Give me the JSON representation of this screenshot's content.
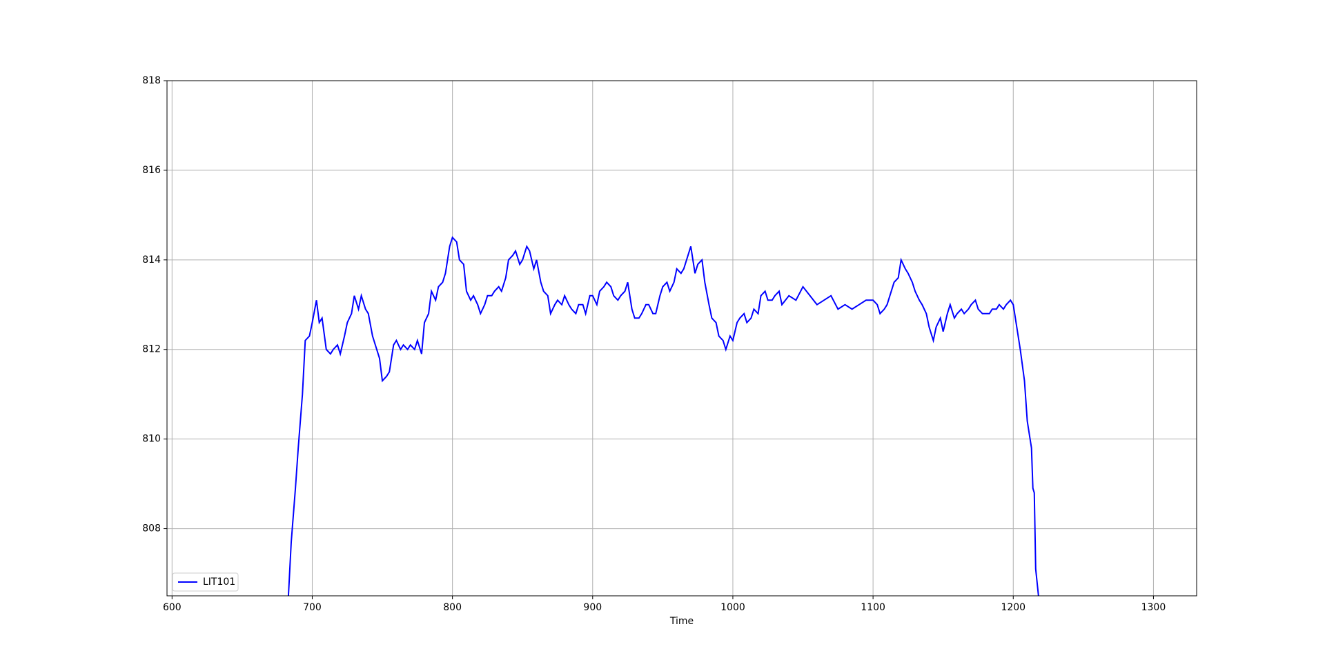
{
  "chart_data": {
    "type": "line",
    "xlabel": "Time",
    "x": [
      683,
      685,
      688,
      690,
      693,
      695,
      698,
      700,
      703,
      705,
      707,
      710,
      713,
      715,
      718,
      720,
      723,
      725,
      728,
      730,
      733,
      735,
      738,
      740,
      743,
      745,
      748,
      750,
      753,
      755,
      758,
      760,
      763,
      765,
      768,
      770,
      773,
      775,
      778,
      780,
      783,
      785,
      788,
      790,
      793,
      795,
      798,
      800,
      803,
      805,
      808,
      810,
      813,
      815,
      818,
      820,
      823,
      825,
      828,
      830,
      833,
      835,
      838,
      840,
      843,
      845,
      848,
      850,
      853,
      855,
      858,
      860,
      863,
      865,
      868,
      870,
      873,
      875,
      878,
      880,
      883,
      885,
      888,
      890,
      893,
      895,
      898,
      900,
      903,
      905,
      908,
      910,
      913,
      915,
      918,
      920,
      923,
      925,
      928,
      930,
      933,
      935,
      938,
      940,
      943,
      945,
      948,
      950,
      953,
      955,
      958,
      960,
      963,
      965,
      968,
      970,
      973,
      975,
      978,
      980,
      983,
      985,
      988,
      990,
      993,
      995,
      998,
      1000,
      1003,
      1005,
      1008,
      1010,
      1013,
      1015,
      1018,
      1020,
      1023,
      1025,
      1028,
      1030,
      1033,
      1035,
      1040,
      1045,
      1050,
      1055,
      1060,
      1065,
      1070,
      1075,
      1080,
      1085,
      1090,
      1095,
      1100,
      1103,
      1105,
      1108,
      1110,
      1113,
      1115,
      1118,
      1120,
      1123,
      1125,
      1128,
      1130,
      1133,
      1135,
      1138,
      1140,
      1143,
      1145,
      1148,
      1150,
      1153,
      1155,
      1158,
      1160,
      1163,
      1165,
      1168,
      1170,
      1173,
      1175,
      1178,
      1180,
      1183,
      1185,
      1188,
      1190,
      1193,
      1195,
      1198,
      1200,
      1203,
      1205,
      1208,
      1210,
      1212,
      1213,
      1214,
      1215,
      1216,
      1217,
      1218
    ],
    "series": [
      {
        "name": "LIT101",
        "color": "#0000ff",
        "values": [
          806.5,
          807.7,
          808.9,
          809.8,
          811.0,
          812.2,
          812.3,
          812.6,
          813.1,
          812.6,
          812.7,
          812.0,
          811.9,
          812.0,
          812.1,
          811.9,
          812.3,
          812.6,
          812.8,
          813.2,
          812.9,
          813.2,
          812.9,
          812.8,
          812.3,
          812.1,
          811.8,
          811.3,
          811.4,
          811.5,
          812.1,
          812.2,
          812.0,
          812.1,
          812.0,
          812.1,
          812.0,
          812.2,
          811.9,
          812.6,
          812.8,
          813.3,
          813.1,
          813.4,
          813.5,
          813.7,
          814.3,
          814.5,
          814.4,
          814.0,
          813.9,
          813.3,
          813.1,
          813.2,
          813.0,
          812.8,
          813.0,
          813.2,
          813.2,
          813.3,
          813.4,
          813.3,
          813.6,
          814.0,
          814.1,
          814.2,
          813.9,
          814.0,
          814.3,
          814.2,
          813.8,
          814.0,
          813.5,
          813.3,
          813.2,
          812.8,
          813.0,
          813.1,
          813.0,
          813.2,
          813.0,
          812.9,
          812.8,
          813.0,
          813.0,
          812.8,
          813.2,
          813.2,
          813.0,
          813.3,
          813.4,
          813.5,
          813.4,
          813.2,
          813.1,
          813.2,
          813.3,
          813.5,
          812.9,
          812.7,
          812.7,
          812.8,
          813.0,
          813.0,
          812.8,
          812.8,
          813.2,
          813.4,
          813.5,
          813.3,
          813.5,
          813.8,
          813.7,
          813.8,
          814.1,
          814.3,
          813.7,
          813.9,
          814.0,
          813.5,
          813.0,
          812.7,
          812.6,
          812.3,
          812.2,
          812.0,
          812.3,
          812.2,
          812.6,
          812.7,
          812.8,
          812.6,
          812.7,
          812.9,
          812.8,
          813.2,
          813.3,
          813.1,
          813.1,
          813.2,
          813.3,
          813.0,
          813.2,
          813.1,
          813.4,
          813.2,
          813.0,
          813.1,
          813.2,
          812.9,
          813.0,
          812.9,
          813.0,
          813.1,
          813.1,
          813.0,
          812.8,
          812.9,
          813.0,
          813.3,
          813.5,
          813.6,
          814.0,
          813.8,
          813.7,
          813.5,
          813.3,
          813.1,
          813.0,
          812.8,
          812.5,
          812.2,
          812.5,
          812.7,
          812.4,
          812.8,
          813.0,
          812.7,
          812.8,
          812.9,
          812.8,
          812.9,
          813.0,
          813.1,
          812.9,
          812.8,
          812.8,
          812.8,
          812.9,
          812.9,
          813.0,
          812.9,
          813.0,
          813.1,
          813.0,
          812.4,
          812.0,
          811.3,
          810.4,
          810.0,
          809.8,
          808.9,
          808.8,
          807.1,
          806.8,
          806.5
        ]
      }
    ],
    "xlim": [
      596.4,
      1330.8
    ],
    "xticks": [
      600,
      700,
      800,
      900,
      1000,
      1100,
      1200,
      1300
    ],
    "ylim": [
      806.5,
      818
    ],
    "yticks": [
      808,
      810,
      812,
      814,
      816,
      818
    ],
    "grid": true,
    "legend": "lower left"
  }
}
